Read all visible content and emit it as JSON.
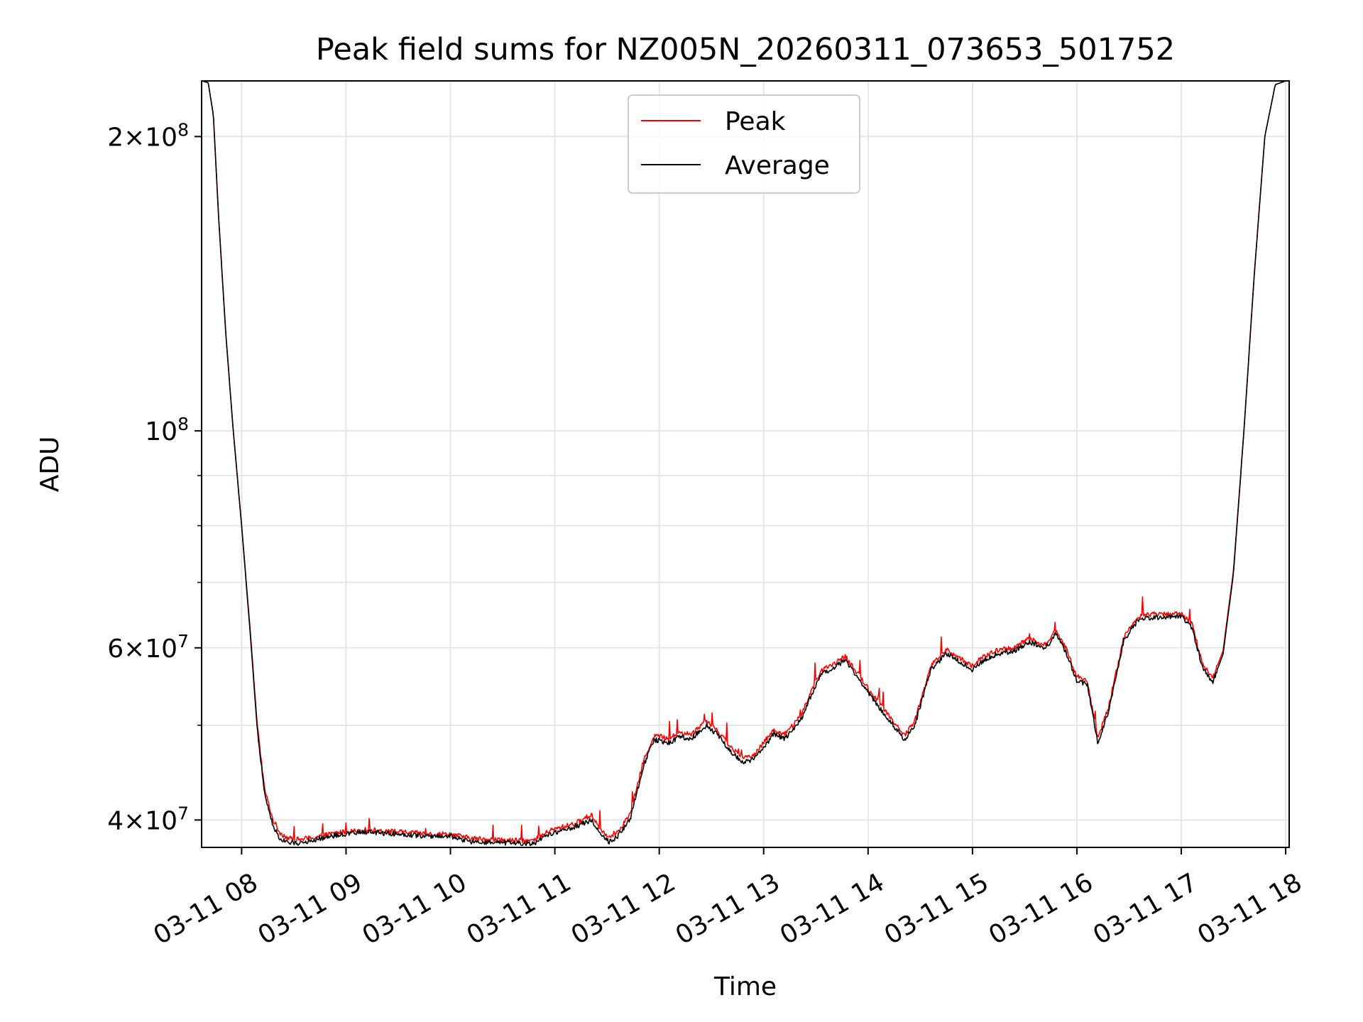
{
  "chart_data": {
    "type": "line",
    "title": "Peak field sums for NZ005N_20260311_073653_501752",
    "xlabel": "Time",
    "ylabel": "ADU",
    "y_scale": "log",
    "ylim": [
      37500000,
      228000000
    ],
    "xlim": [
      "03-11 07:37",
      "03-11 18:02"
    ],
    "grid": true,
    "legend_position": "upper center",
    "x_ticks": [
      "03-11 08",
      "03-11 09",
      "03-11 10",
      "03-11 11",
      "03-11 12",
      "03-11 13",
      "03-11 14",
      "03-11 15",
      "03-11 16",
      "03-11 17",
      "03-11 18"
    ],
    "x_tick_hours": [
      8,
      9,
      10,
      11,
      12,
      13,
      14,
      15,
      16,
      17,
      18
    ],
    "y_major_ticks": [
      {
        "value": 40000000,
        "mantissa": "4",
        "exponent": "7"
      },
      {
        "value": 60000000,
        "mantissa": "6",
        "exponent": "7"
      },
      {
        "value": 100000000,
        "mantissa": "",
        "exponent": "8"
      },
      {
        "value": 200000000,
        "mantissa": "2",
        "exponent": "8"
      }
    ],
    "y_minor_ticks": [
      50000000,
      70000000,
      80000000,
      90000000
    ],
    "series": [
      {
        "name": "Peak",
        "color": "#ff0000",
        "x_hours": [
          7.62,
          7.68,
          7.73,
          7.78,
          7.85,
          7.92,
          8.0,
          8.08,
          8.15,
          8.22,
          8.3,
          8.37,
          8.45,
          8.55,
          8.7,
          8.9,
          9.2,
          9.5,
          9.8,
          10.0,
          10.2,
          10.4,
          10.6,
          10.8,
          10.95,
          11.2,
          11.35,
          11.45,
          11.52,
          11.6,
          11.72,
          11.85,
          11.95,
          12.1,
          12.2,
          12.3,
          12.45,
          12.55,
          12.7,
          12.8,
          12.9,
          13.0,
          13.1,
          13.2,
          13.35,
          13.45,
          13.55,
          13.65,
          13.78,
          13.9,
          14.05,
          14.2,
          14.35,
          14.45,
          14.6,
          14.75,
          14.85,
          15.0,
          15.1,
          15.25,
          15.4,
          15.55,
          15.7,
          15.8,
          15.9,
          16.0,
          16.1,
          16.2,
          16.3,
          16.45,
          16.6,
          16.8,
          17.0,
          17.1,
          17.2,
          17.3,
          17.4,
          17.5,
          17.6,
          17.7,
          17.8,
          17.9,
          18.0
        ],
        "values": [
          228000000,
          227000000,
          210000000,
          165000000,
          125000000,
          100000000,
          80000000,
          63000000,
          50000000,
          43000000,
          40000000,
          38800000,
          38300000,
          38200000,
          38400000,
          38800000,
          39100000,
          38900000,
          38700000,
          38700000,
          38300000,
          38200000,
          38100000,
          38100000,
          39000000,
          39700000,
          40500000,
          39000000,
          38500000,
          38900000,
          40500000,
          46000000,
          48800000,
          48500000,
          49200000,
          48900000,
          50600000,
          49500000,
          47300000,
          46200000,
          46600000,
          48000000,
          49500000,
          48900000,
          51000000,
          54000000,
          56800000,
          57600000,
          58800000,
          56500000,
          53600000,
          51200000,
          48800000,
          50600000,
          57500000,
          59700000,
          58800000,
          57500000,
          58700000,
          59700000,
          60100000,
          61300000,
          60400000,
          62500000,
          59800000,
          56000000,
          55500000,
          48500000,
          52000000,
          61600000,
          64800000,
          65000000,
          65100000,
          63500000,
          58000000,
          55800000,
          59600000,
          72000000,
          100000000,
          145000000,
          200000000,
          226000000,
          228000000
        ]
      },
      {
        "name": "Average",
        "color": "#000000",
        "x_hours": [
          7.62,
          7.68,
          7.73,
          7.78,
          7.85,
          7.92,
          8.0,
          8.08,
          8.15,
          8.22,
          8.3,
          8.37,
          8.45,
          8.55,
          8.7,
          8.9,
          9.2,
          9.5,
          9.8,
          10.0,
          10.2,
          10.4,
          10.6,
          10.8,
          10.95,
          11.2,
          11.35,
          11.45,
          11.52,
          11.6,
          11.72,
          11.85,
          11.95,
          12.1,
          12.2,
          12.3,
          12.45,
          12.55,
          12.7,
          12.8,
          12.9,
          13.0,
          13.1,
          13.2,
          13.35,
          13.45,
          13.55,
          13.65,
          13.78,
          13.9,
          14.05,
          14.2,
          14.35,
          14.45,
          14.6,
          14.75,
          14.85,
          15.0,
          15.1,
          15.25,
          15.4,
          15.55,
          15.7,
          15.8,
          15.9,
          16.0,
          16.1,
          16.2,
          16.3,
          16.45,
          16.6,
          16.8,
          17.0,
          17.1,
          17.2,
          17.3,
          17.4,
          17.5,
          17.6,
          17.7,
          17.8,
          17.9,
          18.0
        ],
        "values": [
          228000000,
          227000000,
          210000000,
          165000000,
          125000000,
          100000000,
          80000000,
          62500000,
          49500000,
          42500000,
          39500000,
          38200000,
          37900000,
          37900000,
          38200000,
          38600000,
          38900000,
          38700000,
          38500000,
          38500000,
          38000000,
          37900000,
          37900000,
          37800000,
          38700000,
          39400000,
          40000000,
          38600000,
          38000000,
          38500000,
          40000000,
          45500000,
          48300000,
          48000000,
          48700000,
          48400000,
          50000000,
          49000000,
          46800000,
          45800000,
          46100000,
          47500000,
          49000000,
          48400000,
          50500000,
          53500000,
          56300000,
          57000000,
          58300000,
          56000000,
          53100000,
          50700000,
          48300000,
          50100000,
          57000000,
          59200000,
          58300000,
          57000000,
          58200000,
          59200000,
          59600000,
          60800000,
          59900000,
          62000000,
          59300000,
          55500000,
          55000000,
          48000000,
          51500000,
          61100000,
          64300000,
          64500000,
          64600000,
          63000000,
          57500000,
          55300000,
          59100000,
          71500000,
          100000000,
          145000000,
          200000000,
          226000000,
          228000000
        ]
      }
    ]
  }
}
